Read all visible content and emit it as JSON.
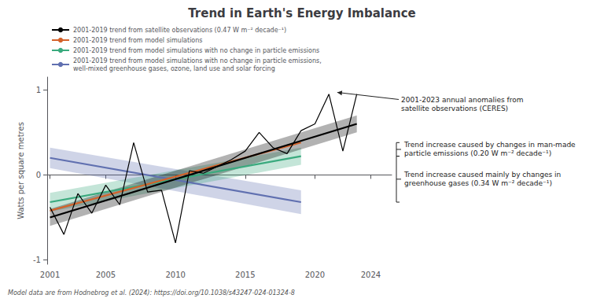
{
  "chart_data": {
    "type": "line",
    "title": "Trend in Earth's Energy Imbalance",
    "ylabel": "Watts per square metres",
    "xlim": [
      2000.8,
      2025.5
    ],
    "ylim": [
      -1.05,
      1.15
    ],
    "xticks": [
      2001,
      2005,
      2010,
      2015,
      2020,
      2024
    ],
    "yticks": [
      -1,
      0,
      1
    ],
    "grid": false,
    "legend": "upper left",
    "series": [
      {
        "name": "2001-2019 trend from satellite observations (0.47 W m⁻² decade⁻¹)",
        "color": "#000000",
        "x": [
          2001,
          2023
        ],
        "values": [
          -0.5,
          0.6
        ],
        "band_lo": [
          -0.6,
          0.5
        ],
        "band_hi": [
          -0.4,
          0.7
        ]
      },
      {
        "name": "2001-2019 trend from model simulations",
        "color": "#d4622a",
        "x": [
          2001,
          2019
        ],
        "values": [
          -0.42,
          0.38
        ]
      },
      {
        "name": "2001-2019 trend from model simulations with no change in particle emissions",
        "color": "#3aaa7e",
        "x": [
          2001,
          2019
        ],
        "values": [
          -0.32,
          0.22
        ],
        "band_lo": [
          -0.43,
          0.12
        ],
        "band_hi": [
          -0.21,
          0.32
        ]
      },
      {
        "name": "2001-2019 trend from model simulations with no change in particle emissions,\nwell-mixed greenhouse gases, ozone, land use and solar forcing",
        "color": "#6070b0",
        "x": [
          2001,
          2019
        ],
        "values": [
          0.2,
          -0.32
        ],
        "band_lo": [
          0.08,
          -0.46
        ],
        "band_hi": [
          0.32,
          -0.18
        ]
      },
      {
        "color": "#000000",
        "x": [
          2001,
          2002,
          2003,
          2004,
          2005,
          2006,
          2007,
          2008,
          2009,
          2010,
          2011,
          2012,
          2013,
          2014,
          2015,
          2016,
          2017,
          2018,
          2019,
          2020,
          2021,
          2022,
          2023
        ],
        "values": [
          -0.38,
          -0.7,
          -0.22,
          -0.45,
          -0.12,
          -0.35,
          0.38,
          -0.2,
          -0.18,
          -0.8,
          0.05,
          0.02,
          0.1,
          0.18,
          0.28,
          0.5,
          0.32,
          0.25,
          0.52,
          0.6,
          0.95,
          0.28,
          0.95
        ]
      }
    ],
    "annotations": [
      {
        "text": "2001-2023 annual anomalies from\nsatellite observations (CERES)",
        "xy": [
          2021.6,
          0.97
        ]
      },
      {
        "text": "Trend increase caused by changes in man-made\nparticle emissions (0.20 W m⁻² decade⁻¹)",
        "bracket": [
          0.38,
          0.22
        ]
      },
      {
        "text": "Trend increase caused mainly by changes in\ngreenhouse gases (0.34 W m⁻² decade⁻¹)",
        "bracket": [
          0.22,
          -0.32
        ]
      },
      {
        "text": "Model data are from Hodnebrog et al. (2024): https://doi.org/10.1038/s43247-024-01324-8"
      }
    ]
  }
}
